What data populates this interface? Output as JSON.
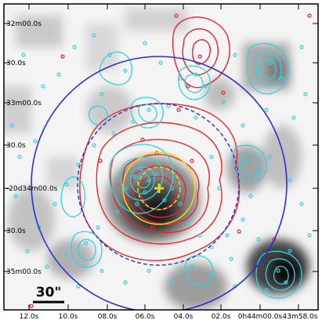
{
  "figure": {
    "dec_labels": [
      "32m00.0s",
      "30.0s",
      "33m00.0s",
      "30.0s",
      "-20d34m00.0s",
      "30.0s",
      "35m00.0s"
    ],
    "ra_labels": [
      "12.0s",
      "10.0s",
      "08.0s",
      "06.0s",
      "04.0s",
      "02.0s",
      "0h44m00.0s",
      "43m58.0s"
    ],
    "scale_bar_label": "30\"",
    "colors": {
      "xray_contours": "#e8262a",
      "galaxy_contours": "#2fd4e0",
      "outer_circle": "#2a2fcf",
      "dashed_circle": "#2a2fcf",
      "center_circles": "#f5d21a",
      "center_marker": "#f5d21a"
    },
    "elements": [
      "grayscale-background",
      "red-contours",
      "cyan-contours",
      "cyan-galaxy-points",
      "red-galaxy-points",
      "outer-blue-circle",
      "dashed-blue-circle",
      "yellow-circles",
      "center-cross"
    ]
  }
}
